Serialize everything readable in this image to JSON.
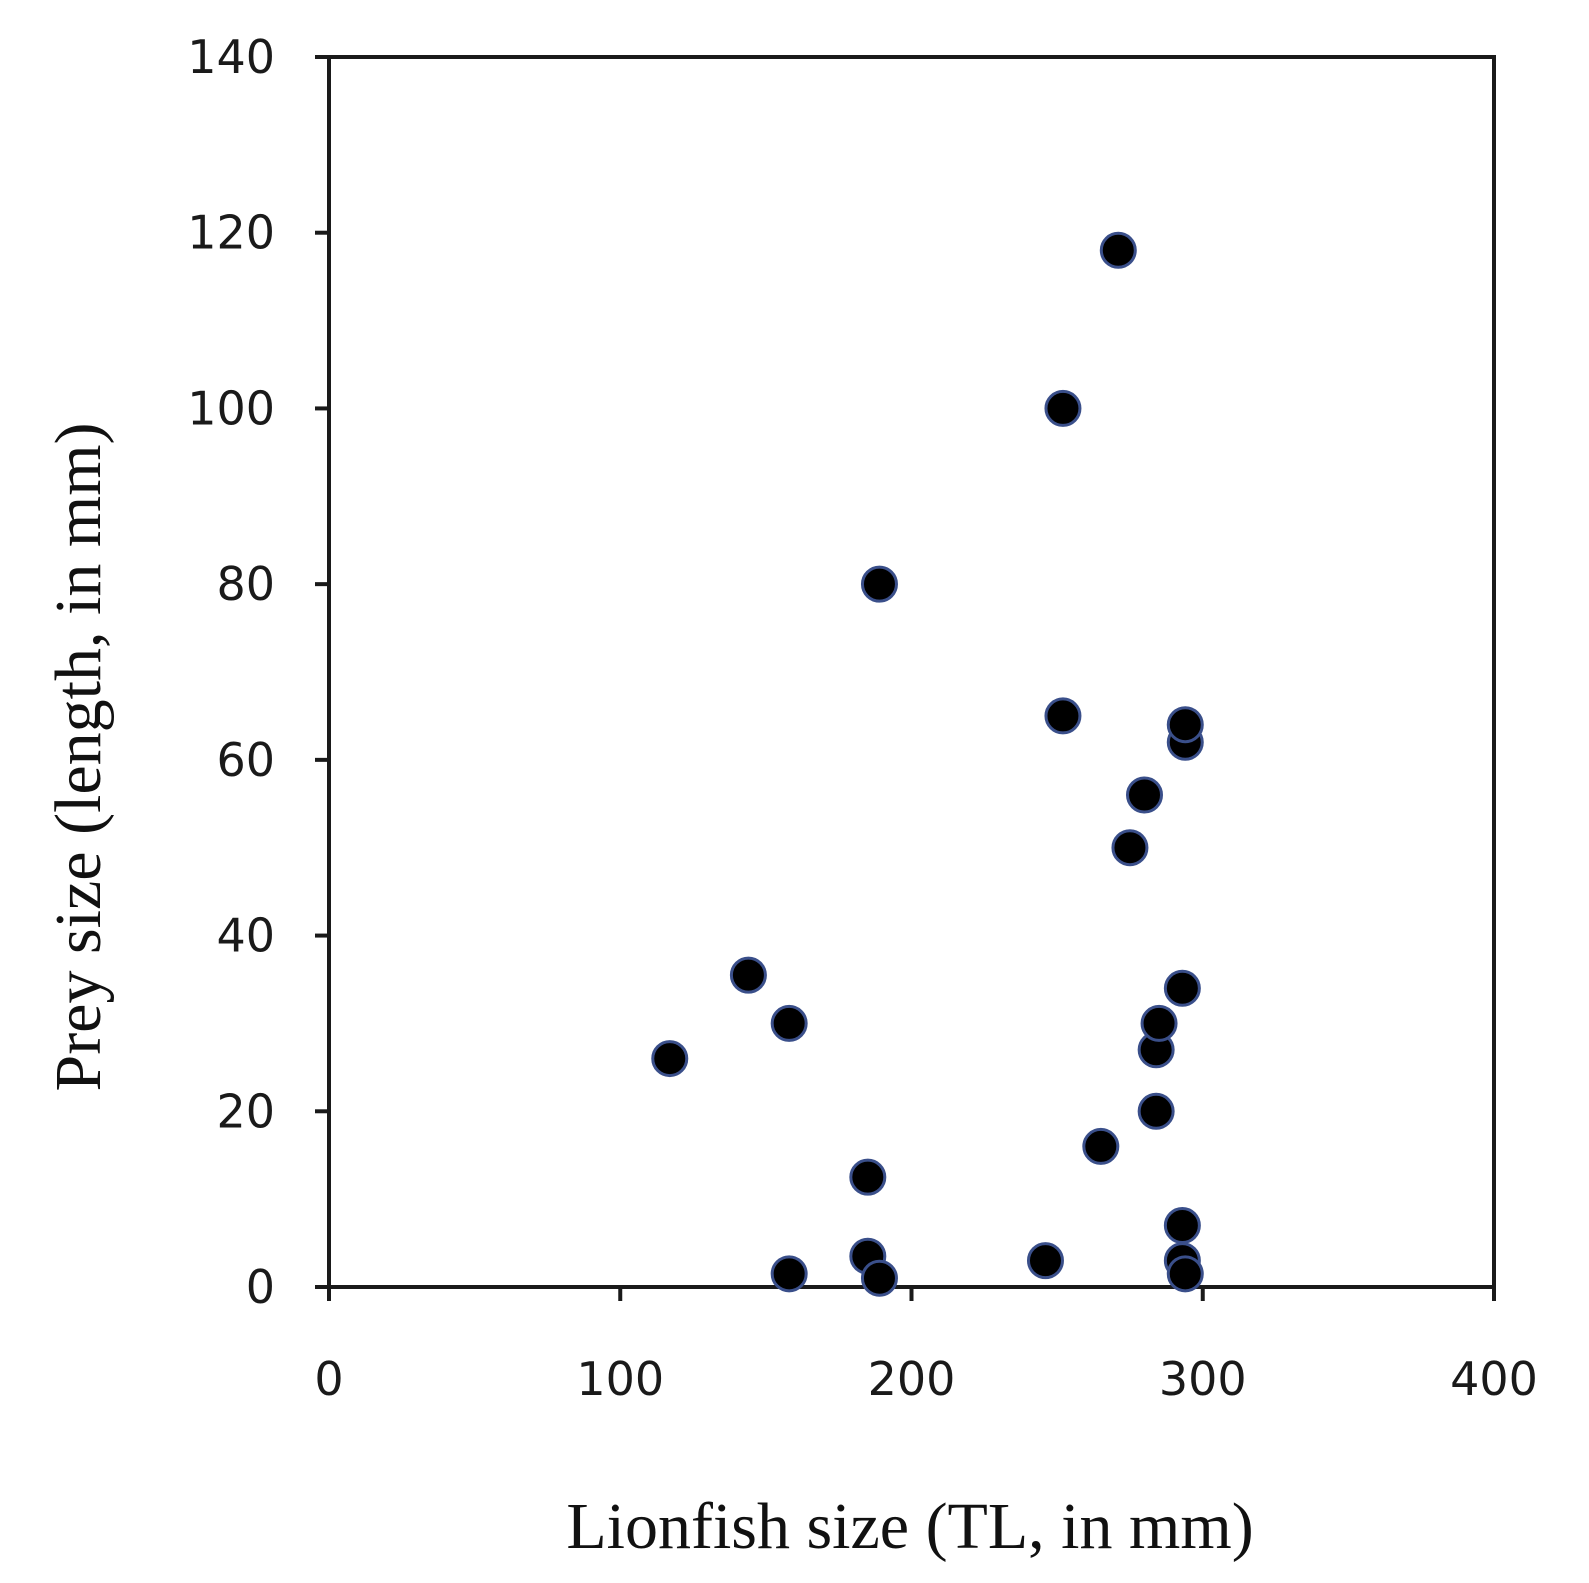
{
  "chart_data": {
    "type": "scatter",
    "title": "",
    "xlabel": "Lionfish size (TL, in mm)",
    "ylabel": "Prey size (length, in mm)",
    "xlim": [
      0,
      400
    ],
    "ylim": [
      0,
      140
    ],
    "xticks": [
      "0",
      "100",
      "200",
      "300",
      "400"
    ],
    "yticks": [
      "0",
      "20",
      "40",
      "60",
      "80",
      "100",
      "120",
      "140"
    ],
    "grid": false,
    "legend": "none",
    "colors": {
      "marker_fill": "#000000",
      "marker_edge": "#3a4f8a",
      "axis": "#1a1a1a"
    },
    "series": [
      {
        "points": [
          {
            "x": 117,
            "y": 26
          },
          {
            "x": 144,
            "y": 35.5
          },
          {
            "x": 158,
            "y": 30
          },
          {
            "x": 158,
            "y": 1.5
          },
          {
            "x": 185,
            "y": 12.5
          },
          {
            "x": 185,
            "y": 3.5
          },
          {
            "x": 189,
            "y": 1
          },
          {
            "x": 189,
            "y": 80
          },
          {
            "x": 246,
            "y": 3
          },
          {
            "x": 252,
            "y": 100
          },
          {
            "x": 252,
            "y": 65
          },
          {
            "x": 265,
            "y": 16
          },
          {
            "x": 271,
            "y": 118
          },
          {
            "x": 275,
            "y": 50
          },
          {
            "x": 280,
            "y": 56
          },
          {
            "x": 284,
            "y": 20
          },
          {
            "x": 284,
            "y": 27
          },
          {
            "x": 285,
            "y": 30
          },
          {
            "x": 293,
            "y": 34
          },
          {
            "x": 293,
            "y": 7
          },
          {
            "x": 293,
            "y": 3
          },
          {
            "x": 294,
            "y": 1.5
          },
          {
            "x": 294,
            "y": 62
          },
          {
            "x": 294,
            "y": 64
          }
        ]
      }
    ]
  }
}
